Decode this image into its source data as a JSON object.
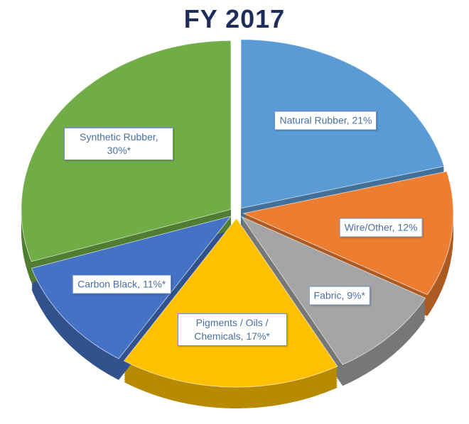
{
  "chart_data": {
    "type": "pie",
    "title": "FY 2017",
    "categories": [
      "Natural Rubber",
      "Wire/Other",
      "Fabric",
      "Pigments / Oils / Chemicals",
      "Carbon Black",
      "Synthetic Rubber"
    ],
    "values": [
      21,
      12,
      9,
      17,
      11,
      30
    ],
    "value_labels": [
      "21%",
      "12%",
      "9%*",
      "17%*",
      "11%*",
      "30%*"
    ],
    "colors": [
      "#5b9bd5",
      "#ed7d31",
      "#a5a5a5",
      "#ffc000",
      "#4472c4",
      "#70ad47"
    ]
  }
}
